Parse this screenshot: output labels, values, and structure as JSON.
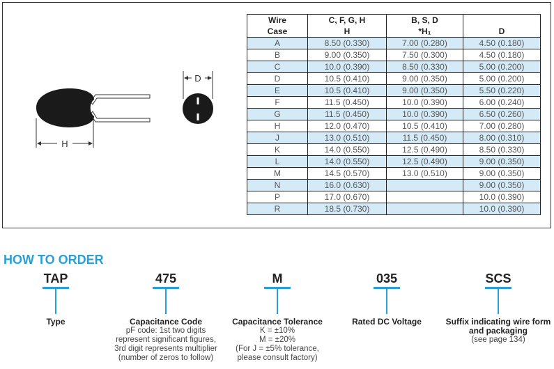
{
  "table": {
    "header1": [
      "Wire",
      "C, F, G, H",
      "B, S, D",
      ""
    ],
    "header2": [
      "Case",
      "H",
      "*H₁",
      "D"
    ],
    "rows": [
      [
        "A",
        "8.50 (0.330)",
        "7.00 (0.280)",
        "4.50 (0.180)"
      ],
      [
        "B",
        "9.00 (0.350)",
        "7.50 (0.300)",
        "4.50 (0.180)"
      ],
      [
        "C",
        "10.0 (0.390)",
        "8.50 (0.330)",
        "5.00 (0.200)"
      ],
      [
        "D",
        "10.5 (0.410)",
        "9.00 (0.350)",
        "5.00 (0.200)"
      ],
      [
        "E",
        "10.5 (0.410)",
        "9.00 (0.350)",
        "5.50 (0.220)"
      ],
      [
        "F",
        "11.5 (0.450)",
        "10.0 (0.390)",
        "6.00 (0.240)"
      ],
      [
        "G",
        "11.5 (0.450)",
        "10.0 (0.390)",
        "6.50 (0.260)"
      ],
      [
        "H",
        "12.0 (0.470)",
        "10.5 (0.410)",
        "7.00 (0.280)"
      ],
      [
        "J",
        "13.0 (0.510)",
        "11.5 (0.450)",
        "8.00 (0.310)"
      ],
      [
        "K",
        "14.0 (0.550)",
        "12.5 (0.490)",
        "8.50 (0.330)"
      ],
      [
        "L",
        "14.0 (0.550)",
        "12.5 (0.490)",
        "9.00 (0.350)"
      ],
      [
        "M",
        "14.5 (0.570)",
        "13.0 (0.510)",
        "9.00 (0.350)"
      ],
      [
        "N",
        "16.0 (0.630)",
        "",
        "9.00 (0.350)"
      ],
      [
        "P",
        "17.0 (0.670)",
        "",
        "10.0 (0.390)"
      ],
      [
        "R",
        "18.5 (0.730)",
        "",
        "10.0 (0.390)"
      ]
    ]
  },
  "diagram": {
    "h_label": "H",
    "d_label": "D"
  },
  "order": {
    "title": "HOW TO ORDER",
    "accent": "#2a9fd6",
    "items": [
      {
        "code": "TAP",
        "label": "Type",
        "desc": []
      },
      {
        "code": "475",
        "label": "Capacitance Code",
        "desc": [
          "pF code: 1st two digits",
          "represent significant figures,",
          "3rd digit represents multiplier",
          "(number of zeros to follow)"
        ]
      },
      {
        "code": "M",
        "label": "Capacitance Tolerance",
        "desc": [
          "K = ±10%",
          "M = ±20%",
          "(For J = ±5% tolerance,",
          "please consult factory)"
        ]
      },
      {
        "code": "035",
        "label": "Rated DC Voltage",
        "desc": []
      },
      {
        "code": "SCS",
        "label": "Suffix indicating wire form and packaging",
        "desc": [
          "(see page 134)"
        ]
      }
    ]
  }
}
